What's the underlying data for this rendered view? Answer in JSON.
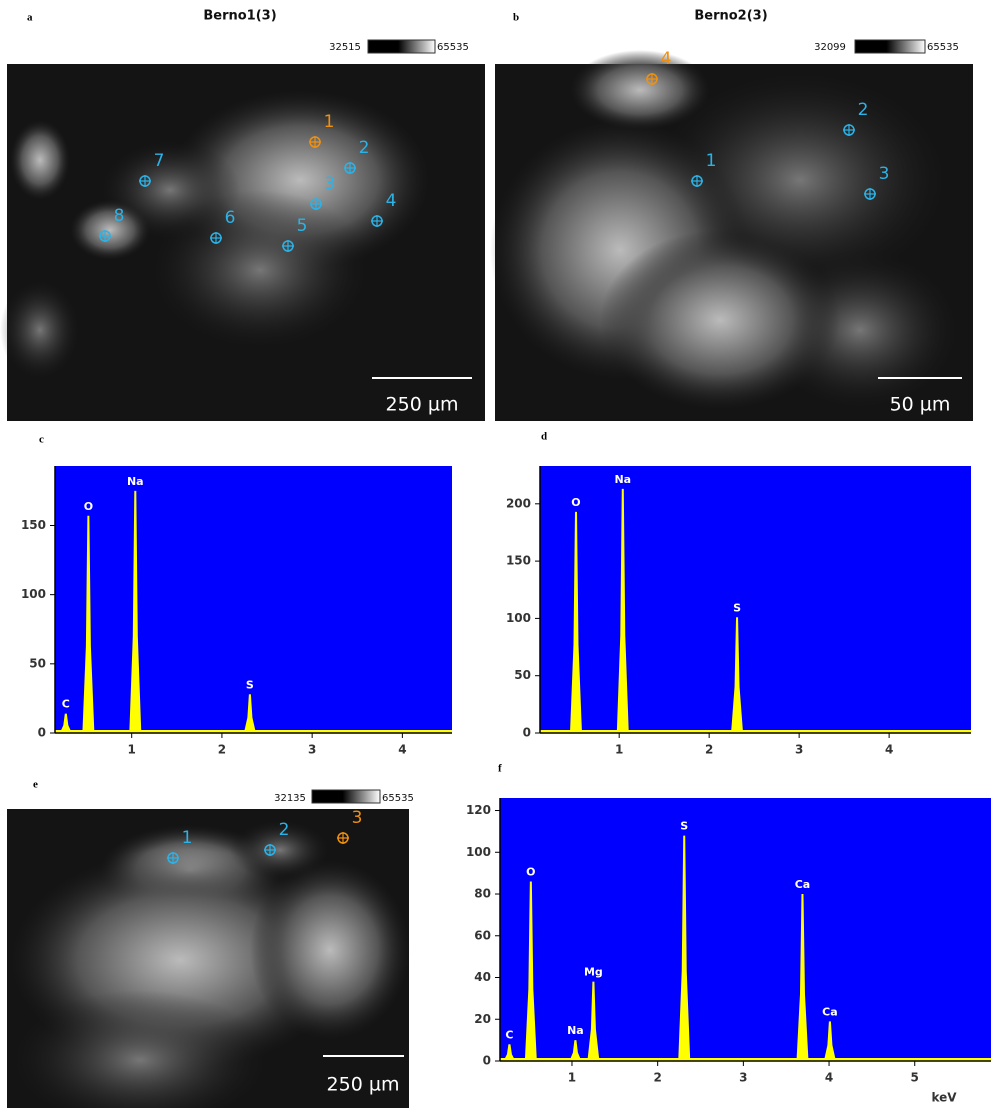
{
  "panels": [
    {
      "label": "a",
      "title": "Berno1(3)",
      "scale_min": "32515",
      "scale_max": "65535",
      "scale_bar": "250 µm",
      "points": [
        {
          "label": "1",
          "color": "#f0900f"
        },
        {
          "label": "2",
          "color": "#2bb3e8"
        },
        {
          "label": "3",
          "color": "#2bb3e8"
        },
        {
          "label": "4",
          "color": "#2bb3e8"
        },
        {
          "label": "5",
          "color": "#2bb3e8"
        },
        {
          "label": "6",
          "color": "#2bb3e8"
        },
        {
          "label": "7",
          "color": "#2bb3e8"
        },
        {
          "label": "8",
          "color": "#2bb3e8"
        }
      ]
    },
    {
      "label": "b",
      "title": "Berno2(3)",
      "scale_min": "32099",
      "scale_max": "65535",
      "scale_bar": "50 µm",
      "points": [
        {
          "label": "1",
          "color": "#2bb3e8"
        },
        {
          "label": "2",
          "color": "#2bb3e8"
        },
        {
          "label": "3",
          "color": "#2bb3e8"
        },
        {
          "label": "4",
          "color": "#f0900f"
        }
      ]
    },
    {
      "label": "e",
      "scale_min": "32135",
      "scale_max": "65535",
      "scale_bar": "250 µm",
      "points": [
        {
          "label": "1",
          "color": "#2bb3e8"
        },
        {
          "label": "2",
          "color": "#2bb3e8"
        },
        {
          "label": "3",
          "color": "#f0900f"
        }
      ]
    }
  ],
  "chart_data": [
    {
      "type": "spectrum",
      "panel_label": "c",
      "color": "#ffff00",
      "background": "#0000ff",
      "xlim": [
        0.15,
        4.55
      ],
      "xticks": [
        1,
        2,
        3,
        4
      ],
      "ylim": [
        0,
        193
      ],
      "yticks": [
        0,
        50,
        100,
        150
      ],
      "peaks": [
        {
          "label": "C",
          "energy": 0.27,
          "counts": 14
        },
        {
          "label": "O",
          "energy": 0.52,
          "counts": 157
        },
        {
          "label": "Na",
          "energy": 1.04,
          "counts": 175
        },
        {
          "label": "S",
          "energy": 2.31,
          "counts": 28
        }
      ]
    },
    {
      "type": "spectrum",
      "panel_label": "d",
      "color": "#ffff00",
      "background": "#0000ff",
      "xlim": [
        0.12,
        4.91
      ],
      "xticks": [
        1,
        2,
        3,
        4
      ],
      "ylim": [
        0,
        233
      ],
      "yticks": [
        0,
        50,
        100,
        150,
        200
      ],
      "peaks": [
        {
          "label": "O",
          "energy": 0.52,
          "counts": 193
        },
        {
          "label": "Na",
          "energy": 1.04,
          "counts": 213
        },
        {
          "label": "S",
          "energy": 2.31,
          "counts": 101
        }
      ]
    },
    {
      "type": "spectrum",
      "panel_label": "f",
      "x_label": "keV",
      "color": "#ffff00",
      "background": "#0000ff",
      "xlim": [
        0.16,
        5.89
      ],
      "xticks": [
        1,
        2,
        3,
        4,
        5
      ],
      "ylim": [
        0,
        126
      ],
      "yticks": [
        0,
        20,
        40,
        60,
        80,
        100,
        120
      ],
      "peaks": [
        {
          "label": "C",
          "energy": 0.27,
          "counts": 8
        },
        {
          "label": "O",
          "energy": 0.52,
          "counts": 86
        },
        {
          "label": "Na",
          "energy": 1.04,
          "counts": 10
        },
        {
          "label": "Mg",
          "energy": 1.25,
          "counts": 38
        },
        {
          "label": "S",
          "energy": 2.31,
          "counts": 108
        },
        {
          "label": "Ca",
          "energy": 3.69,
          "counts": 80
        },
        {
          "label": "Ca",
          "energy": 4.01,
          "counts": 19
        }
      ]
    }
  ]
}
